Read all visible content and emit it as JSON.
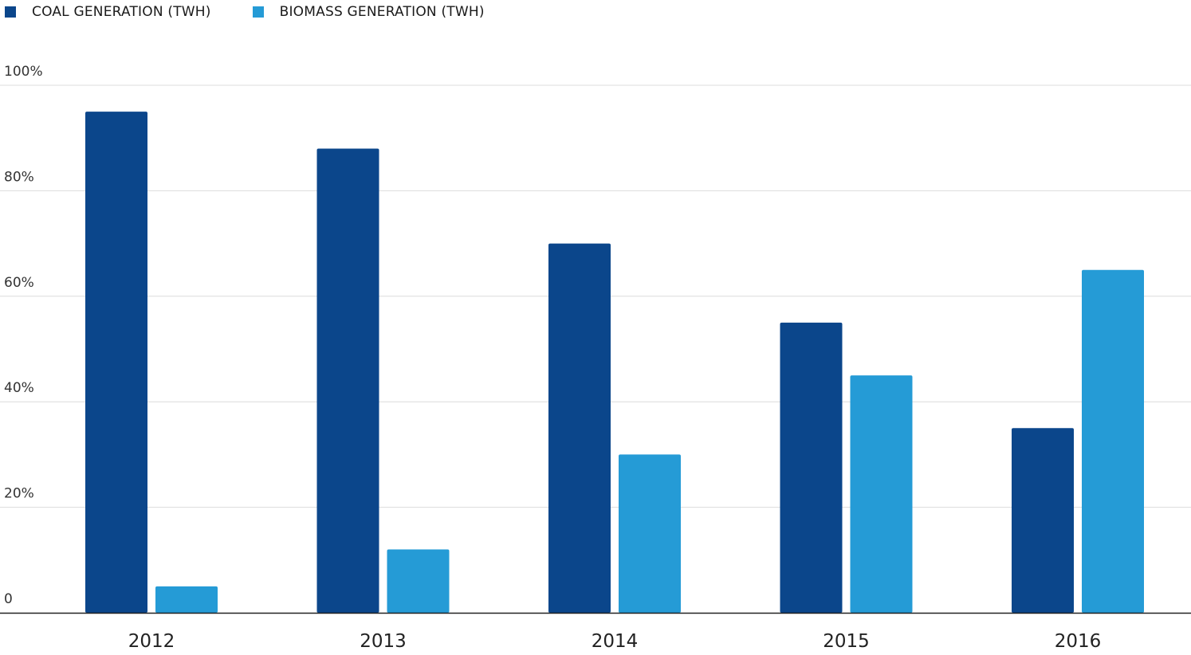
{
  "legend": {
    "items": [
      {
        "label": "COAL GENERATION (TWH)",
        "color": "#0b468b"
      },
      {
        "label": "BIOMASS GENERATION (TWH)",
        "color": "#259bd6"
      }
    ]
  },
  "chart_data": {
    "type": "bar",
    "categories": [
      "2012",
      "2013",
      "2014",
      "2015",
      "2016"
    ],
    "series": [
      {
        "name": "COAL GENERATION (TWH)",
        "color": "#0b468b",
        "values": [
          95,
          88,
          70,
          55,
          35
        ]
      },
      {
        "name": "BIOMASS GENERATION (TWH)",
        "color": "#259bd6",
        "values": [
          5,
          12,
          30,
          45,
          65
        ]
      }
    ],
    "y_ticks": [
      {
        "value": 0,
        "label": "0"
      },
      {
        "value": 20,
        "label": "20%"
      },
      {
        "value": 40,
        "label": "40%"
      },
      {
        "value": 60,
        "label": "60%"
      },
      {
        "value": 80,
        "label": "80%"
      },
      {
        "value": 100,
        "label": "100%"
      }
    ],
    "ylim": [
      0,
      100
    ],
    "grid": true,
    "legend_position": "top-left"
  }
}
